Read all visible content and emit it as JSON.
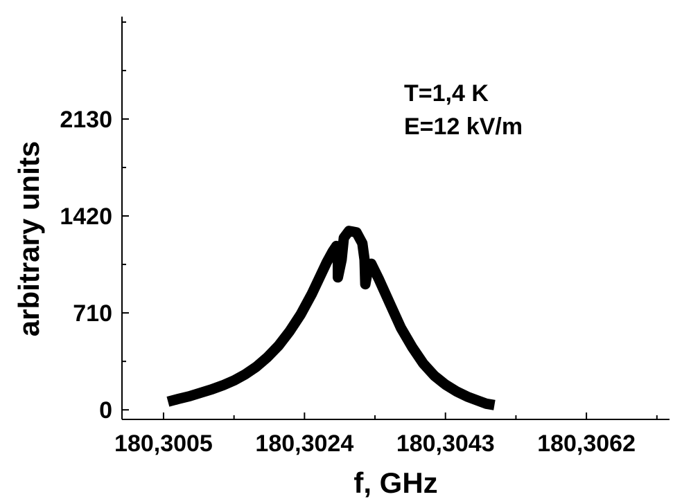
{
  "chart_data": {
    "type": "line",
    "title": "",
    "xlabel": "f, GHz",
    "ylabel": "arbitrary units",
    "xlim": [
      180.29994,
      180.30732
    ],
    "ylim": [
      -70,
      2880
    ],
    "x_ticks": [
      180.3005,
      180.3024,
      180.3043,
      180.3062
    ],
    "x_tick_labels": [
      "180,3005",
      "180,3024",
      "180,3043",
      "180,3062"
    ],
    "x_minor_ticks": [
      180.30145,
      180.30335,
      180.30525,
      180.30715
    ],
    "y_ticks": [
      0,
      710,
      1420,
      2130
    ],
    "y_tick_labels": [
      "0",
      "710",
      "1420",
      "2130"
    ],
    "y_minor_ticks": [
      355,
      1065,
      1775,
      2485,
      2840
    ],
    "annotations": [
      "T=1,4 K",
      "E=12 kV/m"
    ],
    "grid": false,
    "line_color": "#000000",
    "series": [
      {
        "points": [
          [
            180.30056,
            60
          ],
          [
            180.3007,
            80
          ],
          [
            180.30085,
            100
          ],
          [
            180.301,
            125
          ],
          [
            180.30115,
            150
          ],
          [
            180.3013,
            180
          ],
          [
            180.30145,
            215
          ],
          [
            180.3016,
            260
          ],
          [
            180.30175,
            315
          ],
          [
            180.3019,
            385
          ],
          [
            180.30205,
            470
          ],
          [
            180.3022,
            575
          ],
          [
            180.30235,
            700
          ],
          [
            180.3025,
            850
          ],
          [
            180.3026,
            965
          ],
          [
            180.3027,
            1080
          ],
          [
            180.30278,
            1160
          ],
          [
            180.30283,
            1200
          ],
          [
            180.30285,
            1100
          ],
          [
            180.30285,
            970
          ],
          [
            180.3029,
            1100
          ],
          [
            180.30293,
            1260
          ],
          [
            180.303,
            1310
          ],
          [
            180.3031,
            1300
          ],
          [
            180.30318,
            1220
          ],
          [
            180.30321,
            1100
          ],
          [
            180.30322,
            920
          ],
          [
            180.30325,
            1010
          ],
          [
            180.3033,
            1070
          ],
          [
            180.3034,
            960
          ],
          [
            180.30355,
            780
          ],
          [
            180.3037,
            600
          ],
          [
            180.30385,
            460
          ],
          [
            180.304,
            340
          ],
          [
            180.30415,
            250
          ],
          [
            180.3043,
            185
          ],
          [
            180.30445,
            135
          ],
          [
            180.3046,
            95
          ],
          [
            180.30475,
            65
          ],
          [
            180.30485,
            45
          ],
          [
            180.30496,
            35
          ]
        ]
      }
    ]
  }
}
